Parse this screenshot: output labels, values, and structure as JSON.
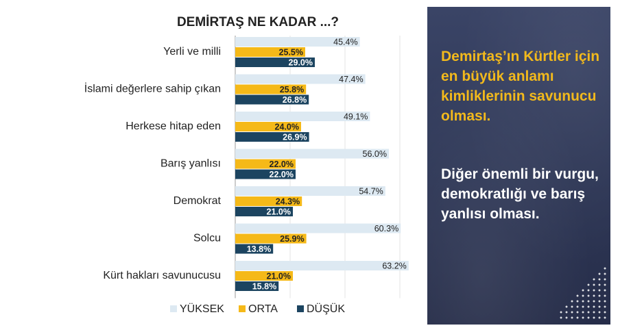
{
  "chart_data": {
    "type": "bar",
    "orientation": "horizontal",
    "title": "DEMİRTAŞ NE KADAR  ...?",
    "categories": [
      "Yerli ve milli",
      "İslami değerlere sahip çıkan",
      "Herkese hitap eden",
      "Barış yanlısı",
      "Demokrat",
      "Solcu",
      "Kürt hakları savunucusu"
    ],
    "series": [
      {
        "name": "YÜKSEK",
        "color": "#dde9f2",
        "values": [
          45.4,
          47.4,
          49.1,
          56.0,
          54.7,
          60.3,
          63.2
        ],
        "labels": [
          "45.4%",
          "47.4%",
          "49.1%",
          "56.0%",
          "54.7%",
          "60.3%",
          "63.2%"
        ]
      },
      {
        "name": "ORTA",
        "color": "#f5b918",
        "values": [
          25.5,
          25.8,
          24.0,
          22.0,
          24.3,
          25.9,
          21.0
        ],
        "labels": [
          "25.5%",
          "25.8%",
          "24.0%",
          "22.0%",
          "24.3%",
          "25.9%",
          "21.0%"
        ]
      },
      {
        "name": "DÜŞÜK",
        "color": "#1c4460",
        "values": [
          29.0,
          26.8,
          26.9,
          22.0,
          21.0,
          13.8,
          15.8
        ],
        "labels": [
          "29.0%",
          "26.8%",
          "26.9%",
          "22.0%",
          "21.0%",
          "13.8%",
          "15.8%"
        ]
      }
    ],
    "xlim": [
      0,
      70
    ],
    "grid": true,
    "legend": "bottom"
  },
  "panel": {
    "headline": "Demirtaş’ın Kürtler için en büyük anlamı kimliklerinin savunucu olması.",
    "subline": "Diğer önemli bir vurgu, demokratlığı ve barış yanlısı olması."
  }
}
